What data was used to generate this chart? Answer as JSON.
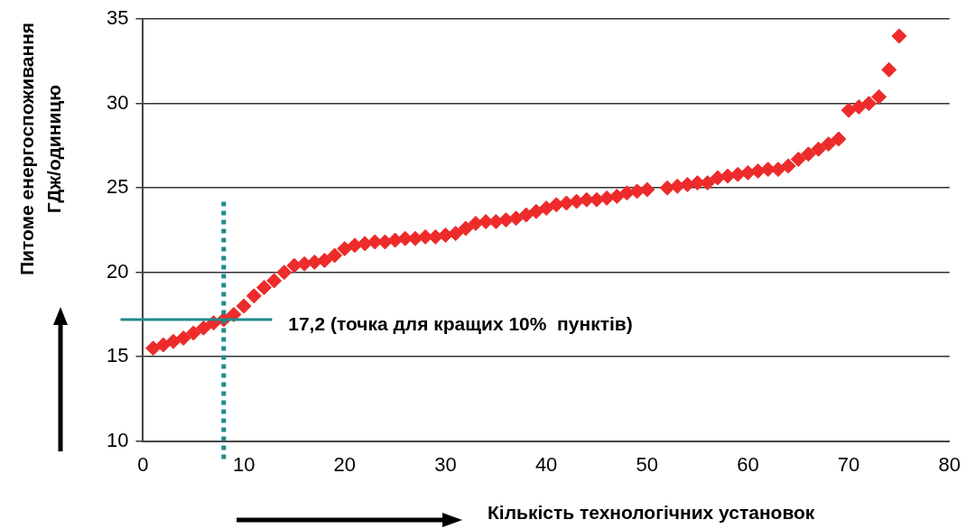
{
  "chart_data": {
    "type": "scatter",
    "xlabel": "Кількість технологічних установок",
    "ylabel": "Питоме енергоспоживання ГДж/одиницю",
    "x": [
      1,
      2,
      3,
      4,
      5,
      6,
      7,
      8,
      9,
      10,
      11,
      12,
      13,
      14,
      15,
      16,
      17,
      18,
      19,
      20,
      21,
      22,
      23,
      24,
      25,
      26,
      27,
      28,
      29,
      30,
      31,
      32,
      33,
      34,
      35,
      36,
      37,
      38,
      39,
      40,
      41,
      42,
      43,
      44,
      45,
      46,
      47,
      48,
      49,
      50,
      52,
      53,
      54,
      55,
      56,
      57,
      58,
      59,
      60,
      61,
      62,
      63,
      64,
      65,
      66,
      67,
      68,
      69,
      70,
      71,
      72,
      73,
      74,
      75
    ],
    "series": [
      {
        "color": "#ee2b2b",
        "values": [
          15.5,
          15.7,
          15.9,
          16.1,
          16.4,
          16.7,
          17.0,
          17.2,
          17.5,
          18.0,
          18.6,
          19.1,
          19.5,
          20.0,
          20.4,
          20.5,
          20.6,
          20.7,
          21.0,
          21.4,
          21.6,
          21.7,
          21.8,
          21.8,
          21.9,
          22.0,
          22.0,
          22.1,
          22.1,
          22.2,
          22.3,
          22.6,
          22.9,
          23.0,
          23.0,
          23.1,
          23.2,
          23.4,
          23.6,
          23.8,
          24.0,
          24.1,
          24.2,
          24.3,
          24.3,
          24.4,
          24.5,
          24.7,
          24.8,
          24.9,
          25.0,
          25.1,
          25.2,
          25.3,
          25.3,
          25.6,
          25.7,
          25.8,
          25.9,
          26.0,
          26.1,
          26.1,
          26.3,
          26.7,
          27.0,
          27.3,
          27.6,
          27.9,
          29.6,
          29.8,
          30.0,
          30.4,
          32.0,
          34.0
        ]
      }
    ],
    "xlim": [
      0,
      80
    ],
    "xticks": [
      0,
      10,
      20,
      30,
      40,
      50,
      60,
      70,
      80
    ],
    "ylim": [
      10,
      35
    ],
    "yticks": [
      10,
      15,
      20,
      25,
      30,
      35
    ],
    "grid": "y",
    "legend": false,
    "marker": "diamond",
    "ref_lines": [
      {
        "axis": "y",
        "value": 17.2,
        "label": "17,2 (точка для кращих 10%  пунктів)",
        "color": "#1e8a8a",
        "line_style": "solid"
      },
      {
        "axis": "x",
        "value": 8,
        "color": "#1e8a8a",
        "line_style": "dotted"
      }
    ]
  }
}
